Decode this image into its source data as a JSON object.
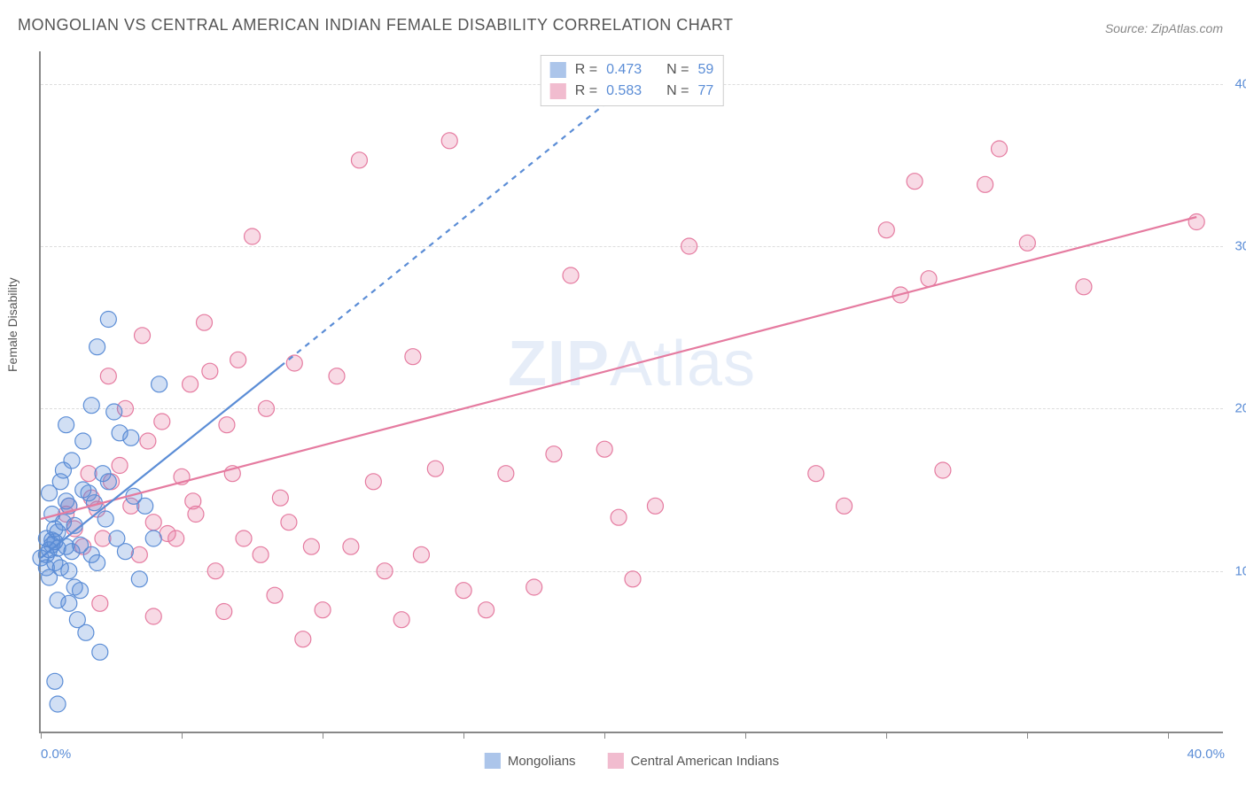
{
  "title": "MONGOLIAN VS CENTRAL AMERICAN INDIAN FEMALE DISABILITY CORRELATION CHART",
  "source": "Source: ZipAtlas.com",
  "ylabel": "Female Disability",
  "watermark_a": "ZIP",
  "watermark_b": "Atlas",
  "chart": {
    "type": "scatter",
    "background_color": "#ffffff",
    "grid_color": "#dddddd",
    "axis_color": "#888888",
    "tick_label_color": "#5b8dd6",
    "xlim": [
      0,
      42
    ],
    "ylim": [
      0,
      42
    ],
    "yticks": [
      10,
      20,
      30,
      40
    ],
    "ytick_labels": [
      "10.0%",
      "20.0%",
      "30.0%",
      "40.0%"
    ],
    "xticks_minor": [
      0,
      5,
      10,
      15,
      20,
      25,
      30,
      35,
      40
    ],
    "xtick_label_left": "0.0%",
    "xtick_label_right": "40.0%",
    "marker_radius": 9,
    "marker_fill_opacity": 0.28,
    "line_width": 2.2
  },
  "series_a": {
    "name": "Mongolians",
    "color": "#5b8dd6",
    "r_label": "R =",
    "r_value": "0.473",
    "n_label": "N =",
    "n_value": "59",
    "fit_line": {
      "x1": 0,
      "y1": 10.8,
      "x2": 8.5,
      "y2": 22.6
    },
    "fit_dashed_ext": {
      "x1": 8.5,
      "y1": 22.6,
      "x2": 20.9,
      "y2": 40
    },
    "points": [
      [
        0.0,
        10.8
      ],
      [
        0.2,
        11.0
      ],
      [
        0.3,
        11.3
      ],
      [
        0.4,
        11.6
      ],
      [
        0.5,
        10.5
      ],
      [
        0.2,
        12.0
      ],
      [
        0.6,
        12.4
      ],
      [
        0.3,
        9.6
      ],
      [
        0.8,
        13.0
      ],
      [
        0.5,
        11.8
      ],
      [
        0.7,
        10.2
      ],
      [
        1.0,
        14.0
      ],
      [
        0.9,
        11.5
      ],
      [
        1.2,
        9.0
      ],
      [
        1.4,
        8.8
      ],
      [
        0.4,
        13.5
      ],
      [
        1.5,
        15.0
      ],
      [
        1.7,
        14.8
      ],
      [
        0.6,
        8.2
      ],
      [
        1.8,
        11.0
      ],
      [
        2.0,
        10.5
      ],
      [
        1.0,
        8.0
      ],
      [
        2.2,
        16.0
      ],
      [
        2.4,
        15.5
      ],
      [
        1.3,
        7.0
      ],
      [
        2.6,
        19.8
      ],
      [
        2.8,
        18.5
      ],
      [
        0.9,
        19.0
      ],
      [
        1.1,
        16.8
      ],
      [
        1.5,
        18.0
      ],
      [
        1.8,
        20.2
      ],
      [
        0.7,
        15.5
      ],
      [
        3.0,
        11.2
      ],
      [
        3.3,
        14.6
      ],
      [
        2.0,
        23.8
      ],
      [
        2.4,
        25.5
      ],
      [
        3.7,
        14.0
      ],
      [
        3.5,
        9.5
      ],
      [
        4.0,
        12.0
      ],
      [
        4.2,
        21.5
      ],
      [
        1.6,
        6.2
      ],
      [
        2.1,
        5.0
      ],
      [
        0.5,
        3.2
      ],
      [
        0.6,
        1.8
      ],
      [
        0.9,
        14.3
      ],
      [
        1.2,
        12.8
      ],
      [
        2.3,
        13.2
      ],
      [
        0.3,
        14.8
      ],
      [
        0.8,
        16.2
      ],
      [
        1.1,
        11.2
      ],
      [
        0.4,
        11.9
      ],
      [
        1.0,
        10.0
      ],
      [
        0.2,
        10.2
      ],
      [
        0.6,
        11.4
      ],
      [
        1.4,
        11.6
      ],
      [
        0.5,
        12.6
      ],
      [
        1.9,
        14.2
      ],
      [
        2.7,
        12.0
      ],
      [
        3.2,
        18.2
      ]
    ]
  },
  "series_b": {
    "name": "Central American Indians",
    "color": "#e57ba0",
    "r_label": "R =",
    "r_value": "0.583",
    "n_label": "N =",
    "n_value": "77",
    "fit_line": {
      "x1": 0,
      "y1": 13.2,
      "x2": 41,
      "y2": 31.8
    },
    "points": [
      [
        1.0,
        14.0
      ],
      [
        1.5,
        11.5
      ],
      [
        1.7,
        16.0
      ],
      [
        2.0,
        13.8
      ],
      [
        2.2,
        12.0
      ],
      [
        2.5,
        15.5
      ],
      [
        2.8,
        16.5
      ],
      [
        3.0,
        20.0
      ],
      [
        3.2,
        14.0
      ],
      [
        3.5,
        11.0
      ],
      [
        3.8,
        18.0
      ],
      [
        4.0,
        13.0
      ],
      [
        4.3,
        19.2
      ],
      [
        4.5,
        12.3
      ],
      [
        5.0,
        15.8
      ],
      [
        5.3,
        21.5
      ],
      [
        5.5,
        13.5
      ],
      [
        5.8,
        25.3
      ],
      [
        6.0,
        22.3
      ],
      [
        6.2,
        10.0
      ],
      [
        6.5,
        7.5
      ],
      [
        6.8,
        16.0
      ],
      [
        7.0,
        23.0
      ],
      [
        7.2,
        12.0
      ],
      [
        7.5,
        30.6
      ],
      [
        8.0,
        20.0
      ],
      [
        8.3,
        8.5
      ],
      [
        8.5,
        14.5
      ],
      [
        9.0,
        22.8
      ],
      [
        9.3,
        5.8
      ],
      [
        9.6,
        11.5
      ],
      [
        10.0,
        7.6
      ],
      [
        10.5,
        22.0
      ],
      [
        11.0,
        11.5
      ],
      [
        11.3,
        35.3
      ],
      [
        11.8,
        15.5
      ],
      [
        12.2,
        10.0
      ],
      [
        12.8,
        7.0
      ],
      [
        13.2,
        23.2
      ],
      [
        13.5,
        11.0
      ],
      [
        14.0,
        16.3
      ],
      [
        14.5,
        36.5
      ],
      [
        15.0,
        8.8
      ],
      [
        15.8,
        7.6
      ],
      [
        16.5,
        16.0
      ],
      [
        17.5,
        9.0
      ],
      [
        18.2,
        17.2
      ],
      [
        18.8,
        28.2
      ],
      [
        20.0,
        17.5
      ],
      [
        20.5,
        13.3
      ],
      [
        21.0,
        9.5
      ],
      [
        21.8,
        14.0
      ],
      [
        23.0,
        30.0
      ],
      [
        27.5,
        16.0
      ],
      [
        28.5,
        14.0
      ],
      [
        30.0,
        31.0
      ],
      [
        30.5,
        27.0
      ],
      [
        31.0,
        34.0
      ],
      [
        31.5,
        28.0
      ],
      [
        32.0,
        16.2
      ],
      [
        33.5,
        33.8
      ],
      [
        34.0,
        36.0
      ],
      [
        35.0,
        30.2
      ],
      [
        37.0,
        27.5
      ],
      [
        41.0,
        31.5
      ],
      [
        2.4,
        22.0
      ],
      [
        1.8,
        14.5
      ],
      [
        2.1,
        8.0
      ],
      [
        3.6,
        24.5
      ],
      [
        4.8,
        12.0
      ],
      [
        5.4,
        14.3
      ],
      [
        6.6,
        19.0
      ],
      [
        7.8,
        11.0
      ],
      [
        8.8,
        13.0
      ],
      [
        4.0,
        7.2
      ],
      [
        1.2,
        12.6
      ],
      [
        0.9,
        13.5
      ]
    ]
  }
}
